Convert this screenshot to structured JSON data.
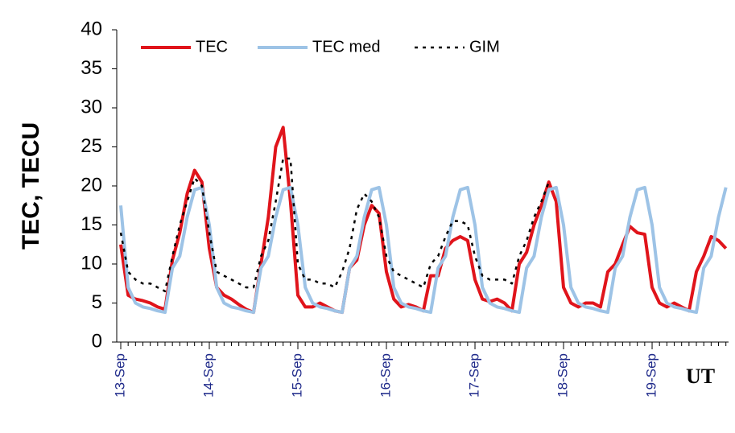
{
  "chart_data": {
    "type": "line",
    "y_label": "TEC, TECU",
    "x_label": "UT",
    "categories": [
      "13-Sep",
      null,
      null,
      null,
      null,
      null,
      null,
      null,
      null,
      null,
      null,
      null,
      "14-Sep",
      null,
      null,
      null,
      null,
      null,
      null,
      null,
      null,
      null,
      null,
      null,
      "15-Sep",
      null,
      null,
      null,
      null,
      null,
      null,
      null,
      null,
      null,
      null,
      null,
      "16-Sep",
      null,
      null,
      null,
      null,
      null,
      null,
      null,
      null,
      null,
      null,
      null,
      "17-Sep",
      null,
      null,
      null,
      null,
      null,
      null,
      null,
      null,
      null,
      null,
      null,
      "18-Sep",
      null,
      null,
      null,
      null,
      null,
      null,
      null,
      null,
      null,
      null,
      null,
      "19-Sep",
      null,
      null,
      null,
      null,
      null,
      null,
      null,
      null,
      null,
      null
    ],
    "series": [
      {
        "name": "TEC",
        "color": "#e0141b",
        "dash": false,
        "width": 4,
        "values": [
          12.5,
          6,
          5.5,
          5.3,
          5,
          4.5,
          4.2,
          10.5,
          14,
          19,
          22,
          20.5,
          12,
          7,
          6,
          5.5,
          4.8,
          4.2,
          3.8,
          10,
          16,
          25,
          27.5,
          18,
          6,
          4.5,
          4.5,
          5,
          4.5,
          4,
          3.8,
          9.5,
          10.5,
          15,
          17.5,
          16.5,
          9,
          5.5,
          4.5,
          4.8,
          4.5,
          4,
          8.5,
          8.5,
          12,
          13,
          13.5,
          13,
          8,
          5.5,
          5.2,
          5.5,
          5,
          4,
          10,
          11.5,
          15,
          17.5,
          20.5,
          18,
          7,
          5,
          4.5,
          5,
          5,
          4.5,
          9,
          10,
          12.5,
          14.8,
          14,
          13.8,
          7,
          5,
          4.5,
          5,
          4.5,
          4,
          9,
          11,
          13.5,
          13,
          12
        ]
      },
      {
        "name": "TEC med",
        "color": "#9dc3e6",
        "dash": false,
        "width": 4,
        "values": [
          17.5,
          7,
          5,
          4.5,
          4.3,
          4,
          3.8,
          9.5,
          11,
          16,
          19.5,
          19.8,
          15,
          7,
          5,
          4.5,
          4.3,
          4,
          3.8,
          9.5,
          11,
          16,
          19.5,
          19.8,
          15,
          7,
          5,
          4.5,
          4.3,
          4,
          3.8,
          9.5,
          11,
          16,
          19.5,
          19.8,
          15,
          7,
          5,
          4.5,
          4.3,
          4,
          3.8,
          9.5,
          11,
          16,
          19.5,
          19.8,
          15,
          7,
          5,
          4.5,
          4.3,
          4,
          3.8,
          9.5,
          11,
          16,
          19.5,
          19.8,
          15,
          7,
          5,
          4.5,
          4.3,
          4,
          3.8,
          9.5,
          11,
          16,
          19.5,
          19.8,
          15,
          7,
          5,
          4.5,
          4.3,
          4,
          3.8,
          9.5,
          11,
          16,
          19.8
        ]
      },
      {
        "name": "GIM",
        "color": "#000000",
        "dash": true,
        "width": 2.5,
        "values": [
          14,
          9,
          8,
          7.5,
          7.5,
          7,
          6.5,
          11,
          15,
          18,
          21,
          20,
          14,
          9,
          8.5,
          8,
          7.5,
          7,
          7,
          11,
          13,
          18,
          23.5,
          23.5,
          10,
          8,
          8,
          7.5,
          7.5,
          7,
          9,
          12,
          17,
          19,
          18,
          16,
          11,
          9,
          8.5,
          8,
          7.5,
          7,
          10,
          11,
          13.5,
          15.5,
          15.5,
          15,
          11,
          8.5,
          8,
          8,
          8,
          7.5,
          11,
          13,
          16,
          18,
          20.5,
          null,
          null,
          null,
          null,
          null,
          null,
          null,
          null,
          null,
          null,
          null,
          null,
          null,
          null,
          null,
          null,
          null,
          null,
          null,
          null,
          null,
          null,
          null,
          null
        ]
      }
    ],
    "ylim": [
      0,
      40
    ],
    "yticks": [
      0,
      5,
      10,
      15,
      20,
      25,
      30,
      35,
      40
    ],
    "legend": "top-left"
  }
}
